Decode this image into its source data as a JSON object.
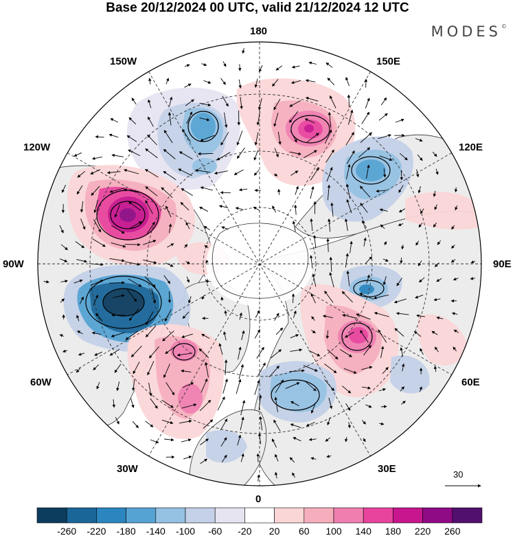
{
  "title": "Base 20/12/2024 00 UTC, valid 21/12/2024 12 UTC",
  "brand": "MODES",
  "brand_mark": "©",
  "longitude_labels": {
    "deg180": "180",
    "w150": "150W",
    "e150": "150E",
    "w120": "120W",
    "e120": "120E",
    "w90": "90W",
    "e90": "90E",
    "w60": "60W",
    "e60": "60E",
    "w30": "30W",
    "e30": "30E",
    "deg0": "0"
  },
  "reference_vector": {
    "label": "30"
  },
  "colorbar": {
    "labels": [
      "-260",
      "-220",
      "-180",
      "-140",
      "-100",
      "-60",
      "-20",
      "20",
      "60",
      "100",
      "140",
      "180",
      "220",
      "260"
    ],
    "colors": [
      "#0d3d5e",
      "#1a6699",
      "#2b86bf",
      "#55a3d3",
      "#95c1e3",
      "#c4d1e8",
      "#e6e4f1",
      "#ffffff",
      "#fbd6d7",
      "#f6aebd",
      "#f07fb0",
      "#e8449e",
      "#c7168e",
      "#8f0a85",
      "#52106e"
    ]
  },
  "map": {
    "projection": "north polar stereographic",
    "center_longitude_bottom": "0",
    "land_color": "#ececec",
    "anomalies": [
      {
        "sign": "negative",
        "peak": -180,
        "lon_label": "150W-120W sector"
      },
      {
        "sign": "positive",
        "peak": 180,
        "lon_label": "170E sector"
      },
      {
        "sign": "negative",
        "peak": -140,
        "lon_label": "130E sector"
      },
      {
        "sign": "positive",
        "peak": 220,
        "lon_label": "110W sector"
      },
      {
        "sign": "negative",
        "peak": -260,
        "lon_label": "80W sector"
      },
      {
        "sign": "negative",
        "peak": -140,
        "lon_label": "90E sector"
      },
      {
        "sign": "positive",
        "peak": 180,
        "lon_label": "60E sector"
      },
      {
        "sign": "positive",
        "peak": 140,
        "lon_label": "50W sector"
      },
      {
        "sign": "negative",
        "peak": -140,
        "lon_label": "20E sector"
      }
    ]
  }
}
